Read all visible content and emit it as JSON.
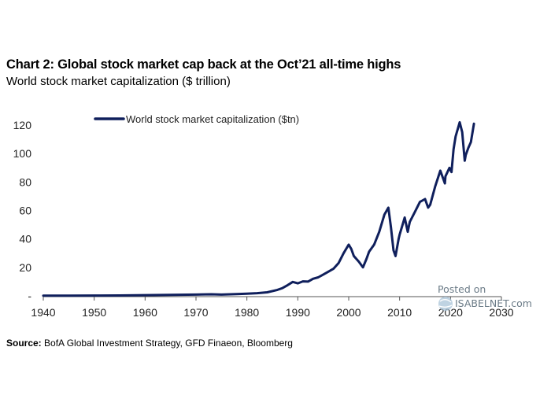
{
  "title": "Chart 2: Global stock market cap back at the Oct’21 all-time highs",
  "subtitle": "World stock market capitalization ($ trillion)",
  "source_label": "Source:",
  "source_text": "BofA Global Investment Strategy, GFD Finaeon, Bloomberg",
  "watermark": {
    "line1": "Posted on",
    "line2": "ISABELNET.com"
  },
  "colors": {
    "series": "#0f1f5c",
    "axis": "#555555"
  },
  "chart_data": {
    "type": "line",
    "title": "Chart 2: Global stock market cap back at the Oct’21 all-time highs",
    "ylabel": "World stock market capitalization ($ trillion)",
    "xlim": [
      1940,
      2030
    ],
    "ylim": [
      0,
      120
    ],
    "x_ticks": [
      "1940",
      "1950",
      "1960",
      "1970",
      "1980",
      "1990",
      "2000",
      "2010",
      "2020",
      "2030"
    ],
    "y_ticks": [
      "-",
      "20",
      "40",
      "60",
      "80",
      "100",
      "120"
    ],
    "y_tick_values": [
      0,
      20,
      40,
      60,
      80,
      100,
      120
    ],
    "x_tick_values": [
      1940,
      1950,
      1960,
      1970,
      1980,
      1990,
      2000,
      2010,
      2020,
      2030
    ],
    "legend_position": "top-center",
    "grid": false,
    "series": [
      {
        "name": "World stock market capitalization ($tn)",
        "x": [
          1940,
          1945,
          1950,
          1955,
          1960,
          1965,
          1970,
          1973,
          1975,
          1978,
          1980,
          1982,
          1984,
          1986,
          1987,
          1988,
          1989,
          1990,
          1991,
          1992,
          1993,
          1994,
          1995,
          1996,
          1997,
          1998,
          1999,
          2000,
          2000.5,
          2001,
          2002,
          2002.8,
          2003.5,
          2004,
          2005,
          2006,
          2007,
          2007.8,
          2008.3,
          2008.8,
          2009.2,
          2009.8,
          2010,
          2010.5,
          2011,
          2011.6,
          2012,
          2013,
          2014,
          2015,
          2015.6,
          2016,
          2017,
          2018,
          2018.9,
          2019,
          2019.8,
          2020.2,
          2020.6,
          2021,
          2021.8,
          2022.3,
          2022.8,
          2023,
          2023.5,
          2024,
          2024.6
        ],
        "values": [
          0.1,
          0.1,
          0.2,
          0.3,
          0.5,
          0.7,
          0.9,
          1.1,
          0.9,
          1.2,
          1.5,
          1.9,
          2.5,
          4.2,
          5.5,
          7.5,
          9.8,
          8.8,
          10.2,
          10.0,
          12.0,
          13.0,
          15.0,
          17.0,
          19.0,
          23.0,
          30.0,
          36.0,
          33.0,
          28.0,
          24.0,
          20.0,
          26.0,
          31.0,
          36.0,
          45.0,
          57.0,
          62.0,
          48.0,
          32.0,
          28.0,
          40.0,
          43.0,
          49.0,
          55.0,
          45.0,
          52.0,
          59.0,
          66.0,
          68.0,
          62.0,
          64.0,
          77.0,
          88.0,
          79.0,
          84.0,
          90.0,
          87.0,
          103.0,
          112.0,
          122.0,
          115.0,
          95.0,
          99.0,
          104.0,
          108.0,
          121.0
        ]
      }
    ]
  }
}
